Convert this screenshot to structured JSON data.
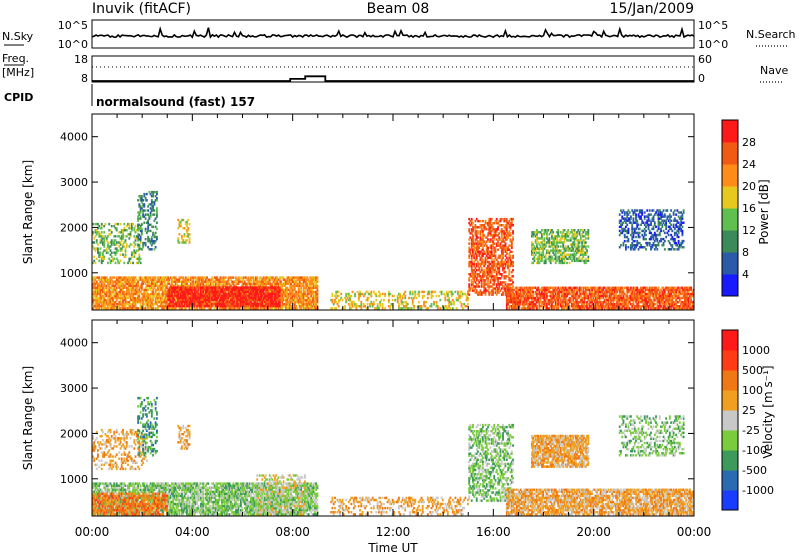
{
  "header": {
    "station": "Inuvik (fitACF)",
    "beam": "Beam 08",
    "date": "15/Jan/2009"
  },
  "panels": {
    "nsky": {
      "label": "N.Sky",
      "tick_top": "10^5",
      "tick_bottom": "10^0",
      "right_label": "N.Search",
      "right_tick_top": "10^5",
      "right_tick_bottom": "10^0"
    },
    "freq": {
      "label_line1": "Freq.",
      "label_line2": "[MHz]",
      "tick_top": "18",
      "tick_bottom": "8",
      "right_tick_top": "60",
      "right_tick_bottom": "0",
      "right_label": "Nave"
    },
    "cpid": {
      "label": "CPID",
      "program": "normalsound (fast) 157"
    }
  },
  "chart_data": [
    {
      "type": "heatmap",
      "name": "power",
      "title": "",
      "xlabel": "Time UT",
      "ylabel": "Slant Range [km]",
      "xlim": [
        0,
        24
      ],
      "ylim": [
        180,
        4500
      ],
      "x_ticks": [
        "00:00",
        "04:00",
        "08:00",
        "12:00",
        "16:00",
        "20:00",
        "00:00"
      ],
      "y_ticks": [
        1000,
        2000,
        3000,
        4000
      ],
      "colorbar": {
        "label": "Power [dB]",
        "ticks": [
          "4",
          "8",
          "12",
          "16",
          "20",
          "24",
          "28"
        ],
        "colors": [
          "#1a1aff",
          "#2a5aa8",
          "#3c8a5a",
          "#5fbf4f",
          "#e6c81e",
          "#ff8c1a",
          "#f05a14",
          "#ff1a1a"
        ]
      },
      "regions": [
        {
          "t0": 0.0,
          "t1": 9.0,
          "r0": 200,
          "r1": 900,
          "color_index": 5,
          "density": 0.8
        },
        {
          "t0": 3.0,
          "t1": 7.5,
          "r0": 250,
          "r1": 700,
          "color_index": 7,
          "density": 0.85
        },
        {
          "t0": 0.0,
          "t1": 2.0,
          "r0": 1200,
          "r1": 2100,
          "color_index": 3,
          "density": 0.35
        },
        {
          "t0": 1.8,
          "t1": 2.6,
          "r0": 1500,
          "r1": 2800,
          "color_index": 2,
          "density": 0.35
        },
        {
          "t0": 3.4,
          "t1": 3.9,
          "r0": 1650,
          "r1": 2200,
          "color_index": 4,
          "density": 0.45
        },
        {
          "t0": 9.5,
          "t1": 15.0,
          "r0": 200,
          "r1": 600,
          "color_index": 4,
          "density": 0.35
        },
        {
          "t0": 15.0,
          "t1": 16.8,
          "r0": 500,
          "r1": 2200,
          "color_index": 6,
          "density": 0.55
        },
        {
          "t0": 17.5,
          "t1": 19.8,
          "r0": 1200,
          "r1": 1950,
          "color_index": 3,
          "density": 0.55
        },
        {
          "t0": 16.5,
          "t1": 24.0,
          "r0": 200,
          "r1": 700,
          "color_index": 6,
          "density": 0.8
        },
        {
          "t0": 21.0,
          "t1": 23.6,
          "r0": 1500,
          "r1": 2400,
          "color_index": 1,
          "density": 0.4
        }
      ]
    },
    {
      "type": "heatmap",
      "name": "velocity",
      "title": "",
      "xlabel": "Time UT",
      "ylabel": "Slant Range [km]",
      "xlim": [
        0,
        24
      ],
      "ylim": [
        180,
        4500
      ],
      "x_ticks": [
        "00:00",
        "04:00",
        "08:00",
        "12:00",
        "16:00",
        "20:00",
        "00:00"
      ],
      "y_ticks": [
        1000,
        2000,
        3000,
        4000
      ],
      "colorbar": {
        "label": "Velocity [m s⁻¹]",
        "ticks": [
          "1000",
          "500",
          "100",
          "25",
          "-25",
          "-100",
          "-500",
          "-1000"
        ],
        "colors": [
          "#1a3cff",
          "#2a6ab0",
          "#3c9a5a",
          "#7acc3c",
          "#c8c8c8",
          "#f0a01e",
          "#f07814",
          "#ff3c14",
          "#ff1a1a"
        ]
      },
      "regions": [
        {
          "t0": 0.0,
          "t1": 9.0,
          "r0": 200,
          "r1": 900,
          "color_index": 3,
          "density": 0.75
        },
        {
          "t0": 0.0,
          "t1": 3.0,
          "r0": 200,
          "r1": 700,
          "color_index": 6,
          "density": 0.6
        },
        {
          "t0": 6.5,
          "t1": 8.5,
          "r0": 200,
          "r1": 1100,
          "color_index": 4,
          "density": 0.35
        },
        {
          "t0": 0.0,
          "t1": 2.2,
          "r0": 1200,
          "r1": 2100,
          "color_index": 5,
          "density": 0.3
        },
        {
          "t0": 1.8,
          "t1": 2.6,
          "r0": 1500,
          "r1": 2800,
          "color_index": 2,
          "density": 0.3
        },
        {
          "t0": 3.4,
          "t1": 3.9,
          "r0": 1650,
          "r1": 2200,
          "color_index": 5,
          "density": 0.45
        },
        {
          "t0": 9.5,
          "t1": 15.0,
          "r0": 200,
          "r1": 600,
          "color_index": 5,
          "density": 0.3
        },
        {
          "t0": 15.0,
          "t1": 16.8,
          "r0": 500,
          "r1": 2200,
          "color_index": 3,
          "density": 0.45
        },
        {
          "t0": 17.5,
          "t1": 19.8,
          "r0": 1250,
          "r1": 1950,
          "color_index": 5,
          "density": 0.8
        },
        {
          "t0": 16.5,
          "t1": 24.0,
          "r0": 200,
          "r1": 800,
          "color_index": 5,
          "density": 0.75
        },
        {
          "t0": 21.0,
          "t1": 23.6,
          "r0": 1500,
          "r1": 2400,
          "color_index": 3,
          "density": 0.35
        }
      ]
    }
  ],
  "frequency_trace": {
    "description_units": "hours UT vs MHz",
    "x": [
      0,
      7.9,
      7.9,
      8.5,
      8.5,
      9.3,
      9.3,
      24
    ],
    "y": [
      8.4,
      8.4,
      9.2,
      9.2,
      10.2,
      10.2,
      8.4,
      8.4
    ]
  }
}
